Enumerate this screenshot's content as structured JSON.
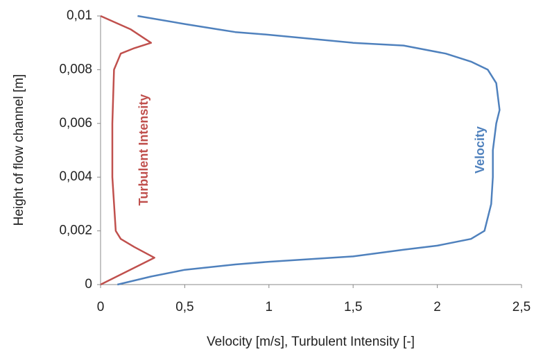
{
  "chart_data": {
    "type": "line",
    "x_label": "Velocity [m/s], Turbulent Intensity [-]",
    "y_label": "Height of flow channel [m]",
    "xlim": [
      0,
      2.5
    ],
    "xticks": [
      0,
      {
        "value": 0.5,
        "label": "0,5"
      },
      1,
      {
        "value": 1.5,
        "label": "1,5"
      },
      2,
      {
        "value": 2.5,
        "label": "2,5"
      }
    ],
    "ylim": [
      0,
      0.01
    ],
    "yticks": [
      0,
      {
        "value": 0.002,
        "label": "0,002"
      },
      {
        "value": 0.004,
        "label": "0,004"
      },
      {
        "value": 0.006,
        "label": "0,006"
      },
      {
        "value": 0.008,
        "label": "0,008"
      },
      {
        "value": 0.01,
        "label": "0,01"
      }
    ],
    "grid": false,
    "series": [
      {
        "name": "Turbulent Intensity",
        "color": "#c0504d",
        "x": [
          0,
          0.32,
          0.2,
          0.12,
          0.09,
          0.07,
          0.07,
          0.08,
          0.12,
          0.2,
          0.3,
          0.18,
          0
        ],
        "values": [
          0,
          0.001,
          0.0014,
          0.0017,
          0.002,
          0.004,
          0.006,
          0.008,
          0.0086,
          0.0088,
          0.009,
          0.0095,
          0.01
        ]
      },
      {
        "name": "Velocity",
        "color": "#4f81bd",
        "x": [
          0.1,
          0.3,
          0.5,
          0.8,
          1.0,
          1.5,
          1.8,
          2.0,
          2.2,
          2.28,
          2.32,
          2.33,
          2.33,
          2.35,
          2.37,
          2.35,
          2.3,
          2.2,
          2.05,
          1.8,
          1.5,
          1.0,
          0.8,
          0.7,
          0.5,
          0.22
        ],
        "values": [
          0,
          0.0003,
          0.00055,
          0.00075,
          0.00085,
          0.00105,
          0.0013,
          0.00145,
          0.0017,
          0.002,
          0.003,
          0.004,
          0.005,
          0.006,
          0.0065,
          0.0075,
          0.008,
          0.0083,
          0.0086,
          0.0089,
          0.009,
          0.0093,
          0.0094,
          0.0095,
          0.0097,
          0.01
        ]
      }
    ]
  }
}
